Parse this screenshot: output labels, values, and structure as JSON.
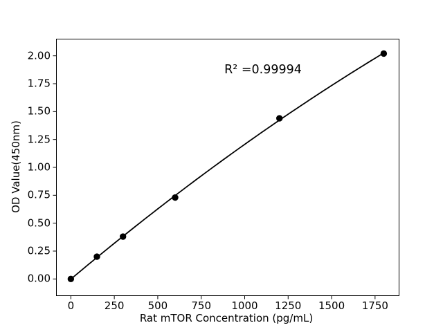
{
  "chart_data": {
    "type": "scatter",
    "title": "",
    "xlabel": "Rat mTOR Concentration (pg/mL)",
    "ylabel": "OD Value(450nm)",
    "x": [
      0,
      150,
      300,
      600,
      1200,
      1800
    ],
    "y": [
      0.0,
      0.2,
      0.38,
      0.73,
      1.44,
      2.02
    ],
    "fit_curve": {
      "type": "quadratic",
      "a": -1.0207e-07,
      "b": 0.00130979,
      "c": -0.001456,
      "x_start": 0,
      "x_end": 1800
    },
    "annotation": {
      "text": "R² =0.99994"
    },
    "xticks": {
      "values": [
        0,
        250,
        500,
        750,
        1000,
        1250,
        1500,
        1750
      ],
      "labels": [
        "0",
        "250",
        "500",
        "750",
        "1000",
        "1250",
        "1500",
        "1750"
      ]
    },
    "yticks": {
      "values": [
        0,
        0.25,
        0.5,
        0.75,
        1.0,
        1.25,
        1.5,
        1.75,
        2.0
      ],
      "labels": [
        "0.00",
        "0.25",
        "0.50",
        "0.75",
        "1.00",
        "1.25",
        "1.50",
        "1.75",
        "2.00"
      ]
    },
    "xlim": [
      -85,
      1890
    ],
    "ylim": [
      -0.153,
      2.153
    ],
    "grid": false,
    "legend": null,
    "colors": {
      "line": "#000000",
      "marker": "#000000",
      "text": "#000000",
      "frame": "#000000",
      "background": "#ffffff"
    }
  }
}
